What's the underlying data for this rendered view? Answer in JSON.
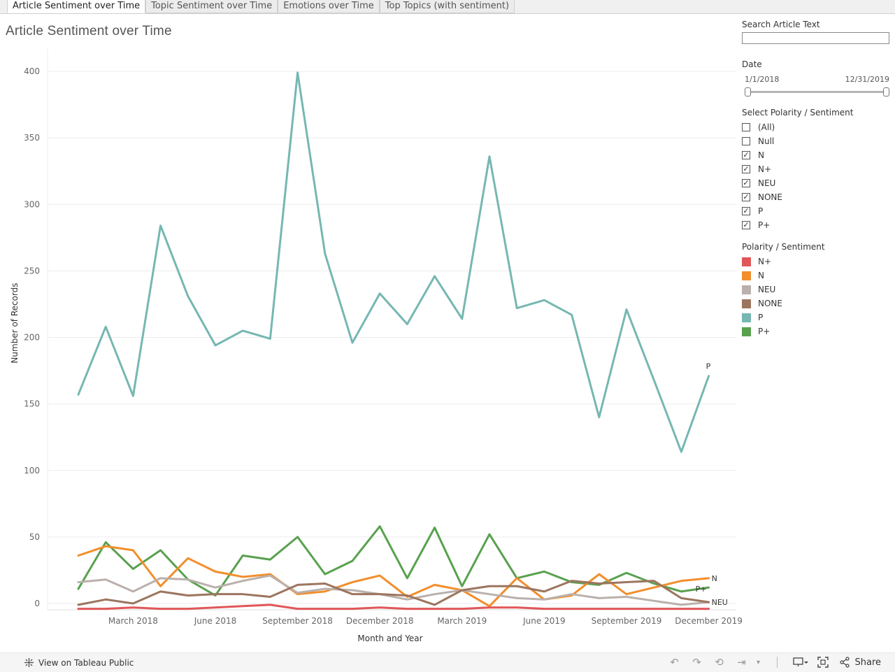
{
  "tabs": [
    {
      "label": "Article Sentiment over Time",
      "active": true
    },
    {
      "label": "Topic Sentiment over Time",
      "active": false
    },
    {
      "label": "Emotions over Time",
      "active": false
    },
    {
      "label": "Top Topics (with sentiment)",
      "active": false
    }
  ],
  "page_title": "Article Sentiment over Time",
  "panel": {
    "search": {
      "label": "Search Article Text",
      "value": "",
      "placeholder": ""
    },
    "date": {
      "label": "Date",
      "start": "1/1/2018",
      "end": "12/31/2019"
    },
    "filter": {
      "label": "Select Polarity / Sentiment",
      "items": [
        {
          "label": "(All)",
          "checked": false
        },
        {
          "label": "Null",
          "checked": false
        },
        {
          "label": "N",
          "checked": true
        },
        {
          "label": "N+",
          "checked": true
        },
        {
          "label": "NEU",
          "checked": true
        },
        {
          "label": "NONE",
          "checked": true
        },
        {
          "label": "P",
          "checked": true
        },
        {
          "label": "P+",
          "checked": true
        }
      ]
    },
    "legend": {
      "label": "Polarity / Sentiment",
      "items": [
        {
          "label": "N+",
          "color": "#e15759"
        },
        {
          "label": "N",
          "color": "#f28e2b"
        },
        {
          "label": "NEU",
          "color": "#bab0ac"
        },
        {
          "label": "NONE",
          "color": "#9c755f"
        },
        {
          "label": "P",
          "color": "#76b7b2"
        },
        {
          "label": "P+",
          "color": "#59a14f"
        }
      ]
    }
  },
  "footer": {
    "view_label": "View on Tableau Public",
    "share_label": "Share"
  },
  "chart_data": {
    "type": "line",
    "title": "Article Sentiment over Time",
    "xlabel": "Month and Year",
    "ylabel": "Number of Records",
    "ylim": [
      0,
      400
    ],
    "yticks": [
      0,
      50,
      100,
      150,
      200,
      250,
      300,
      350,
      400
    ],
    "xtick_labels": [
      {
        "index": 2,
        "label": "March 2018"
      },
      {
        "index": 5,
        "label": "June 2018"
      },
      {
        "index": 8,
        "label": "September 2018"
      },
      {
        "index": 11,
        "label": "December 2018"
      },
      {
        "index": 14,
        "label": "March 2019"
      },
      {
        "index": 17,
        "label": "June 2019"
      },
      {
        "index": 20,
        "label": "September 2019"
      },
      {
        "index": 23,
        "label": "December 2019"
      }
    ],
    "categories": [
      "Jan 2018",
      "Feb 2018",
      "Mar 2018",
      "Apr 2018",
      "May 2018",
      "Jun 2018",
      "Jul 2018",
      "Aug 2018",
      "Sep 2018",
      "Oct 2018",
      "Nov 2018",
      "Dec 2018",
      "Jan 2019",
      "Feb 2019",
      "Mar 2019",
      "Apr 2019",
      "May 2019",
      "Jun 2019",
      "Jul 2019",
      "Aug 2019",
      "Sep 2019",
      "Oct 2019",
      "Nov 2019",
      "Dec 2019"
    ],
    "series": [
      {
        "name": "P",
        "color": "#76b7b2",
        "end_label": "P",
        "values": [
          157,
          208,
          156,
          284,
          231,
          194,
          205,
          199,
          399,
          263,
          196,
          233,
          210,
          246,
          214,
          336,
          222,
          228,
          217,
          140,
          221,
          168,
          114,
          171
        ]
      },
      {
        "name": "P+",
        "color": "#59a14f",
        "end_label": "P+",
        "values": [
          11,
          46,
          26,
          40,
          18,
          6,
          36,
          33,
          50,
          22,
          32,
          58,
          19,
          57,
          13,
          52,
          19,
          24,
          16,
          14,
          23,
          15,
          9,
          12
        ]
      },
      {
        "name": "N",
        "color": "#f28e2b",
        "end_label": "N",
        "values": [
          36,
          43,
          40,
          13,
          34,
          24,
          20,
          22,
          7,
          9,
          16,
          21,
          5,
          14,
          10,
          -2,
          19,
          3,
          6,
          22,
          7,
          12,
          17,
          19
        ]
      },
      {
        "name": "NEU",
        "color": "#bab0ac",
        "end_label": "NEU",
        "values": [
          16,
          18,
          9,
          19,
          18,
          12,
          17,
          21,
          8,
          11,
          10,
          7,
          3,
          7,
          10,
          7,
          4,
          3,
          7,
          4,
          5,
          2,
          -1,
          1
        ]
      },
      {
        "name": "NONE",
        "color": "#9c755f",
        "end_label": "",
        "values": [
          -1,
          3,
          0,
          9,
          6,
          7,
          7,
          5,
          14,
          15,
          7,
          7,
          6,
          -1,
          10,
          13,
          13,
          9,
          17,
          15,
          16,
          17,
          4,
          1
        ]
      },
      {
        "name": "N+",
        "color": "#e15759",
        "end_label": "",
        "values": [
          -4,
          -4,
          -3,
          -4,
          -4,
          -3,
          -2,
          -1,
          -4,
          -4,
          -4,
          -3,
          -4,
          -4,
          -4,
          -3,
          -3,
          -4,
          -4,
          -4,
          -4,
          -4,
          -4,
          -4
        ]
      }
    ]
  }
}
